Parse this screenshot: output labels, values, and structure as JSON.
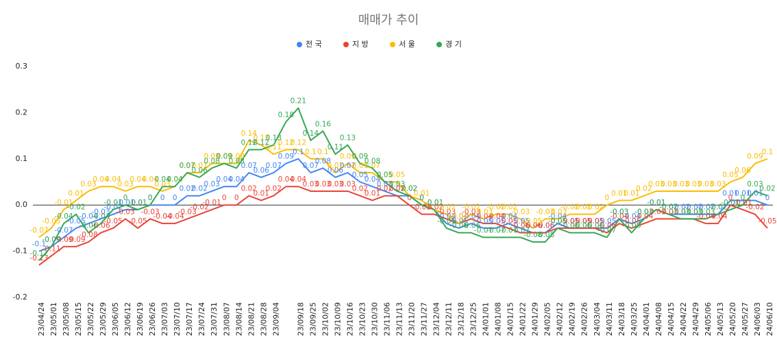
{
  "chart_data": {
    "type": "line",
    "title": "매매가 추이",
    "categories": [
      "23/04/24",
      "23/05/01",
      "23/05/08",
      "23/05/15",
      "23/05/22",
      "23/05/29",
      "23/06/05",
      "23/06/12",
      "23/06/19",
      "23/06/26",
      "23/07/03",
      "23/07/10",
      "23/07/17",
      "23/07/24",
      "23/07/31",
      "23/08/07",
      "23/08/14",
      "23/08/21",
      "23/08/28",
      "23/09/04",
      null,
      "23/09/18",
      "23/09/25",
      "23/10/02",
      "23/10/09",
      "23/10/16",
      "23/10/23",
      "23/10/30",
      "23/11/06",
      "23/11/13",
      "23/11/20",
      "23/11/27",
      "23/12/04",
      "23/12/11",
      "23/12/18",
      "23/12/25",
      "24/01/01",
      "24/01/08",
      "24/01/15",
      "24/01/22",
      "24/01/29",
      "24/02/05",
      "24/02/12",
      "24/02/19",
      "24/02/26",
      "24/03/04",
      "24/03/11",
      "24/03/18",
      "24/03/25",
      "24/04/01",
      "24/04/08",
      "24/04/15",
      "24/04/22",
      "24/04/29",
      "24/05/06",
      "24/05/13",
      "24/05/20",
      "24/05/27",
      "24/06/03",
      "24/06/10"
    ],
    "series": [
      {
        "name": "전 국",
        "color": "#4285f4",
        "values": [
          -0.1,
          -0.09,
          -0.07,
          -0.05,
          -0.04,
          -0.03,
          -0.02,
          -0.01,
          -0.01,
          0,
          0,
          0,
          0.02,
          0.02,
          0.03,
          0.04,
          0.04,
          0.07,
          0.06,
          0.07,
          0.09,
          0.1,
          0.07,
          0.08,
          0.06,
          0.07,
          0.05,
          0.04,
          0.03,
          0.02,
          0.02,
          0,
          -0.01,
          -0.04,
          -0.05,
          -0.04,
          -0.05,
          -0.05,
          -0.04,
          -0.05,
          -0.06,
          -0.06,
          -0.04,
          -0.05,
          -0.05,
          -0.05,
          -0.05,
          -0.03,
          -0.04,
          -0.03,
          -0.01,
          -0.02,
          -0.02,
          -0.02,
          -0.02,
          -0.02,
          0.01,
          0.01,
          0.01,
          0
        ]
      },
      {
        "name": "지 방",
        "color": "#ea4335",
        "values": [
          -0.13,
          -0.11,
          -0.09,
          -0.09,
          -0.08,
          -0.06,
          -0.05,
          -0.03,
          -0.05,
          -0.03,
          -0.04,
          -0.04,
          -0.03,
          -0.02,
          -0.01,
          0,
          0,
          0.02,
          0.01,
          0.02,
          0.04,
          0.04,
          0.03,
          0.03,
          0.03,
          0.03,
          0.02,
          0.01,
          0.02,
          0.02,
          0,
          -0.02,
          -0.02,
          -0.03,
          -0.04,
          -0.03,
          -0.04,
          -0.04,
          -0.05,
          -0.06,
          -0.06,
          -0.06,
          -0.05,
          -0.05,
          -0.05,
          -0.05,
          -0.06,
          -0.04,
          -0.05,
          -0.04,
          -0.03,
          -0.03,
          -0.03,
          -0.03,
          -0.04,
          -0.04,
          0,
          -0.01,
          -0.02,
          -0.05
        ]
      },
      {
        "name": "서 울",
        "color": "#fbbc04",
        "values": [
          -0.07,
          -0.05,
          -0.01,
          0.01,
          0.03,
          0.04,
          0.04,
          0.03,
          0.04,
          0.04,
          0.03,
          0.04,
          0.07,
          0.07,
          0.09,
          0.09,
          0.09,
          0.14,
          0.13,
          0.11,
          0.12,
          0.12,
          0.1,
          0.1,
          0.07,
          0.09,
          0.07,
          0.07,
          0.05,
          0.05,
          0.02,
          0.01,
          -0.01,
          -0.02,
          -0.04,
          -0.02,
          -0.03,
          -0.02,
          -0.02,
          -0.03,
          -0.05,
          -0.03,
          -0.03,
          -0.02,
          -0.02,
          -0.02,
          0,
          0.01,
          0.01,
          0.02,
          0.03,
          0.03,
          0.03,
          0.03,
          0.03,
          0.03,
          0.05,
          0.06,
          0.09,
          0.1
        ]
      },
      {
        "name": "경 기",
        "color": "#34a853",
        "values": [
          -0.12,
          -0.09,
          -0.04,
          -0.02,
          -0.06,
          -0.04,
          -0.01,
          0,
          -0.01,
          0,
          0.04,
          0.04,
          0.07,
          0.06,
          0.08,
          0.09,
          0.08,
          0.12,
          0.12,
          0.13,
          0.18,
          0.21,
          0.14,
          0.16,
          0.11,
          0.13,
          0.09,
          0.08,
          0.05,
          0.03,
          0.02,
          0,
          -0.01,
          -0.05,
          -0.06,
          -0.06,
          -0.07,
          -0.07,
          -0.07,
          -0.07,
          -0.08,
          -0.08,
          -0.05,
          -0.06,
          -0.06,
          -0.06,
          -0.07,
          -0.03,
          -0.06,
          -0.03,
          -0.01,
          -0.02,
          -0.03,
          -0.03,
          -0.03,
          -0.02,
          -0.01,
          0,
          0.03,
          0.02
        ]
      }
    ],
    "ylim": [
      -0.2,
      0.3
    ],
    "yticks": [
      -0.2,
      -0.1,
      {
        "value": 0,
        "label": "0.0"
      },
      0.1,
      0.2,
      0.3
    ],
    "legend": "top"
  }
}
